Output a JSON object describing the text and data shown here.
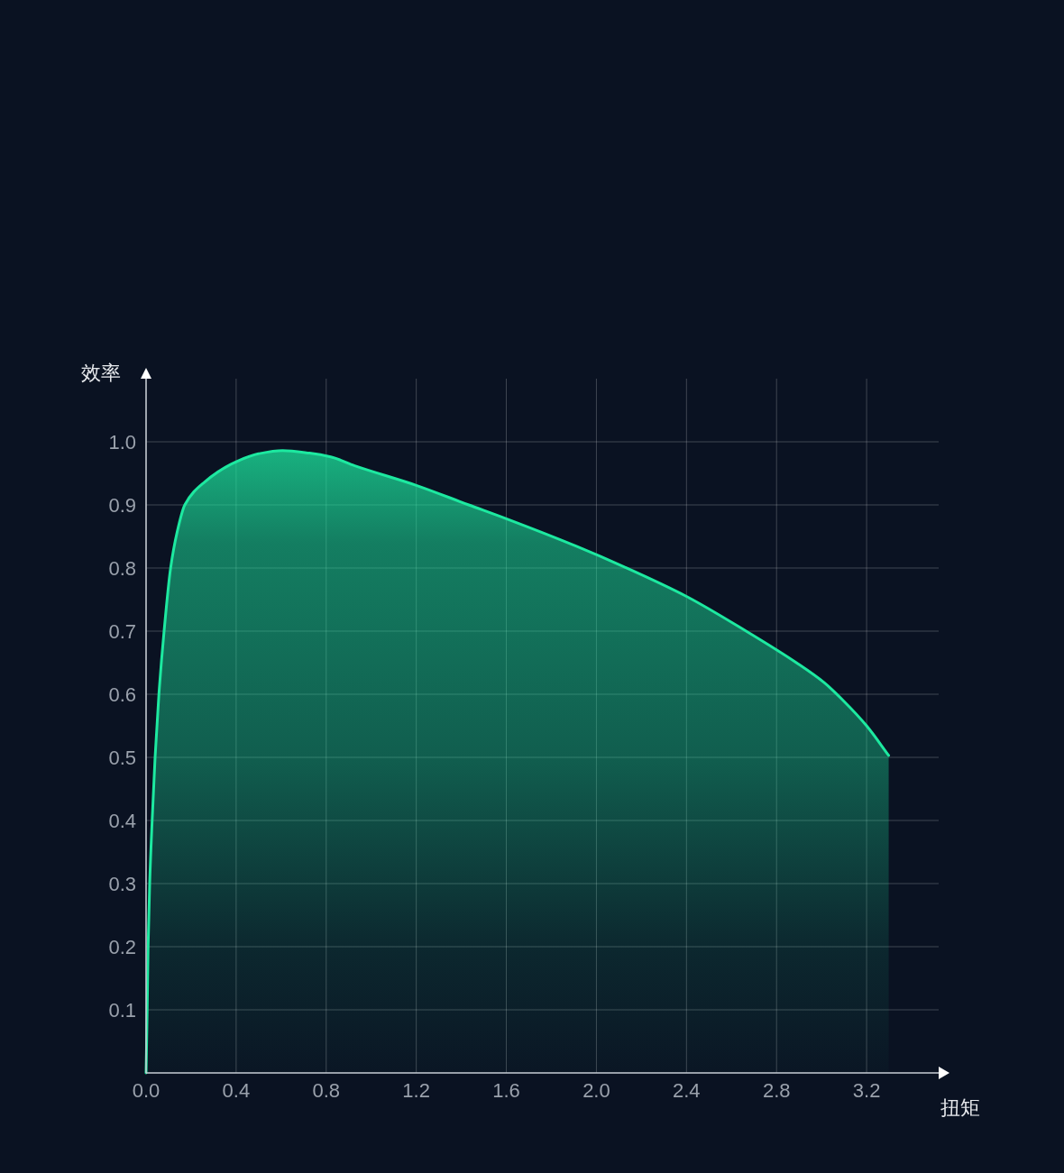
{
  "chart_data": {
    "type": "area",
    "xlabel": "扭矩",
    "ylabel": "效率",
    "x": [
      0,
      0.005,
      0.009,
      0.016,
      0.027,
      0.04,
      0.057,
      0.08,
      0.109,
      0.138,
      0.172,
      0.259,
      0.392,
      0.499,
      0.606,
      0.726,
      0.82,
      0.927,
      1.2,
      1.433,
      1.6,
      1.914,
      2.122,
      2.4,
      2.665,
      2.888,
      3.013,
      3.096,
      3.2,
      3.298
    ],
    "values": [
      0,
      0.1,
      0.2,
      0.3,
      0.4,
      0.5,
      0.6,
      0.7,
      0.8,
      0.857,
      0.9,
      0.936,
      0.967,
      0.981,
      0.986,
      0.982,
      0.976,
      0.962,
      0.931,
      0.9,
      0.878,
      0.834,
      0.802,
      0.755,
      0.7,
      0.65,
      0.618,
      0.59,
      0.55,
      0.503
    ],
    "color": "#1de9a0",
    "xlim": [
      0,
      3.52
    ],
    "ylim": [
      0,
      1.1
    ],
    "xticks": [
      {
        "value": 0,
        "label": "0.0"
      },
      0.4,
      0.8,
      1.2,
      1.6,
      {
        "value": 2,
        "label": "2.0"
      },
      2.4,
      2.8,
      3.2
    ],
    "yticks": [
      0.1,
      0.2,
      0.3,
      0.4,
      0.5,
      0.6,
      0.7,
      0.8,
      0.9,
      {
        "value": 1,
        "label": "1.0"
      }
    ],
    "grid": true
  }
}
